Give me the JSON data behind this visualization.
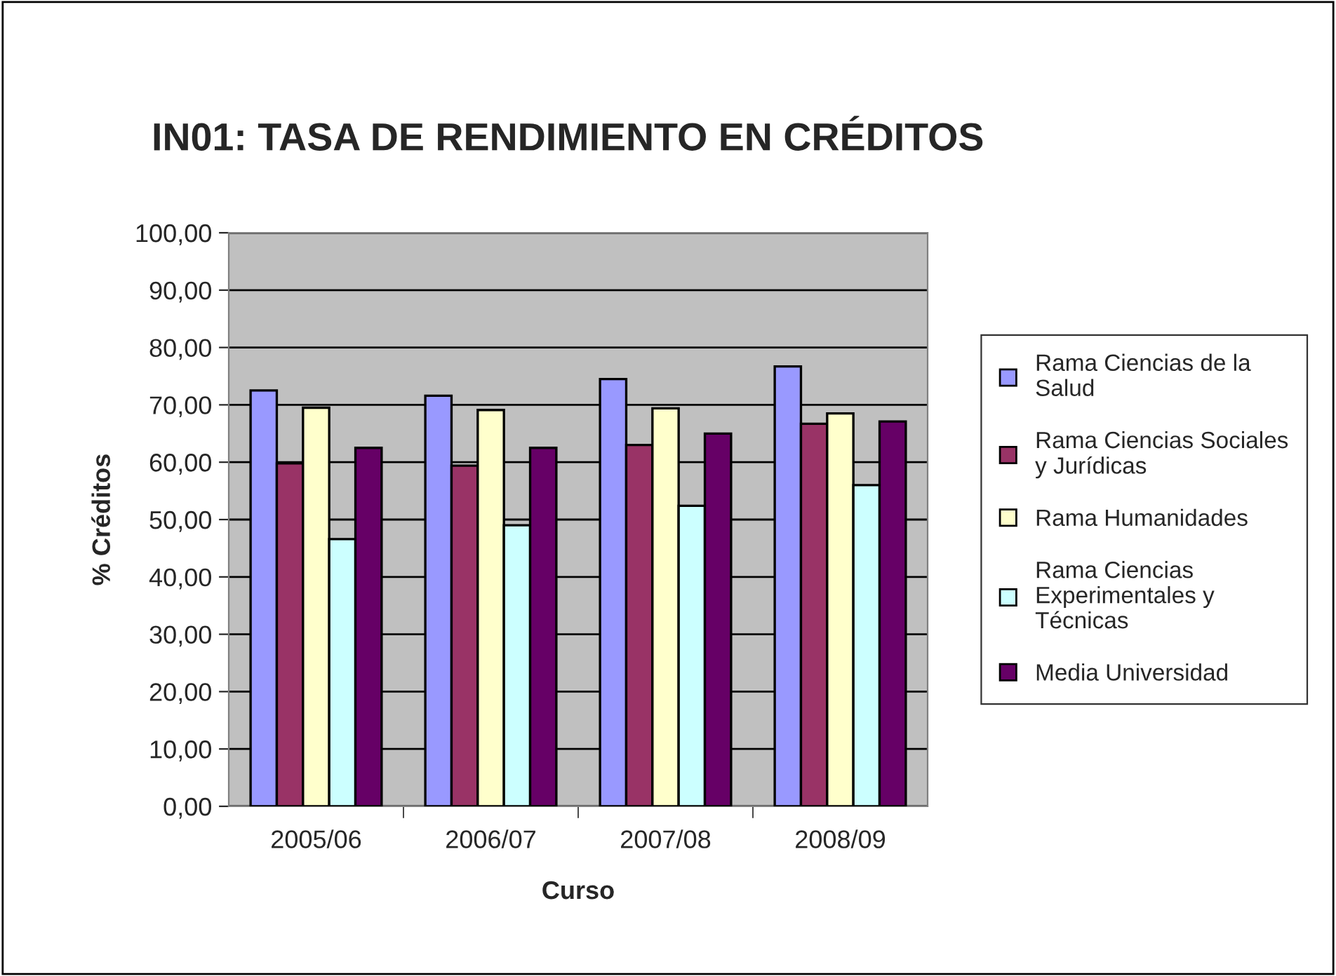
{
  "chart_data": {
    "type": "bar",
    "title": "IN01: TASA DE RENDIMIENTO EN CRÉDITOS",
    "xlabel": "Curso",
    "ylabel": "% Créditos",
    "categories": [
      "2005/06",
      "2006/07",
      "2007/08",
      "2008/09"
    ],
    "series": [
      {
        "name": "Rama Ciencias de la Salud",
        "color": "#9999ff",
        "values": [
          72.5,
          71.6,
          74.5,
          76.7
        ]
      },
      {
        "name": "Rama Ciencias Sociales y Jurídicas",
        "color": "#993366",
        "values": [
          59.8,
          59.4,
          63.0,
          66.7
        ]
      },
      {
        "name": "Rama Humanidades",
        "color": "#ffffcc",
        "values": [
          69.5,
          69.1,
          69.4,
          68.5
        ]
      },
      {
        "name": "Rama Ciencias Experimentales y Técnicas",
        "color": "#ccffff",
        "values": [
          46.6,
          49.0,
          52.4,
          56.0
        ]
      },
      {
        "name": "Media Universidad",
        "color": "#660066",
        "values": [
          62.5,
          62.5,
          65.0,
          67.1
        ]
      }
    ],
    "ylim": [
      0,
      100
    ],
    "yticks": [
      {
        "value": 0,
        "label": "0,00"
      },
      {
        "value": 10,
        "label": "10,00"
      },
      {
        "value": 20,
        "label": "20,00"
      },
      {
        "value": 30,
        "label": "30,00"
      },
      {
        "value": 40,
        "label": "40,00"
      },
      {
        "value": 50,
        "label": "50,00"
      },
      {
        "value": 60,
        "label": "60,00"
      },
      {
        "value": 70,
        "label": "70,00"
      },
      {
        "value": 80,
        "label": "80,00"
      },
      {
        "value": 90,
        "label": "90,00"
      },
      {
        "value": 100,
        "label": "100,00"
      }
    ],
    "grid": "y",
    "legend": "right"
  }
}
